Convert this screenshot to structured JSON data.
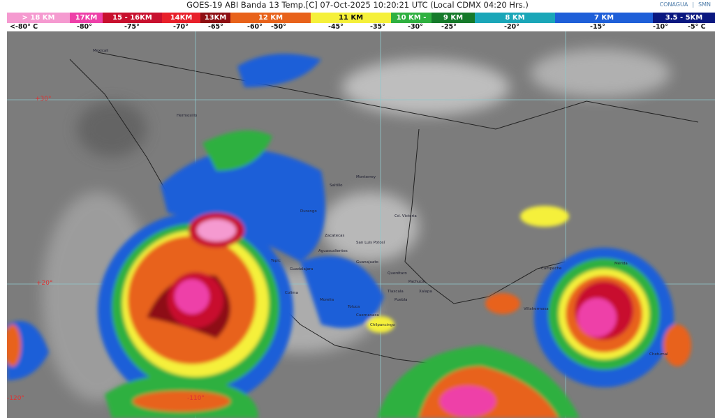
{
  "header": {
    "title": "GOES-19 ABI Banda 13 Temp.[C] 07-Oct-2025 10:20:21 UTC (Local CDMX  04:20 Hrs.)",
    "logos": [
      "CONAGUA",
      "SMN"
    ]
  },
  "legend": [
    {
      "label": "> 18 KM",
      "color": "#f59ad0"
    },
    {
      "label": "17KM",
      "color": "#ee3fa8"
    },
    {
      "label": "15 - 16KM",
      "color": "#c8102e"
    },
    {
      "label": "14KM",
      "color": "#e8202a"
    },
    {
      "label": "13KM",
      "color": "#8e0e12"
    },
    {
      "label": "12 KM",
      "color": "#e8621a"
    },
    {
      "label": "11 KM",
      "color": "#f5f03a"
    },
    {
      "label": "10 KM -",
      "color": "#2fb040"
    },
    {
      "label": "9 KM",
      "color": "#157a2a"
    },
    {
      "label": "8 KM",
      "color": "#1aa6b8"
    },
    {
      "label": "7 KM",
      "color": "#1e5fd8"
    },
    {
      "label": "3.5 - 5KM",
      "color": "#0a1880"
    }
  ],
  "temps": [
    "<-80° C",
    "-80°",
    "-75°",
    "-70°",
    "-65°",
    "-60°",
    "-50°",
    "-45°",
    "-35°",
    "-30°",
    "-25°",
    "-20°",
    "-15°",
    "-10°",
    "-5°  C"
  ],
  "map": {
    "latitudes": [
      "+30°",
      "+20°"
    ],
    "longitudes": [
      "-120°",
      "-110°"
    ],
    "cities": [
      "Mexicali",
      "Hermosillo",
      "Monterrey",
      "Saltillo",
      "Durango",
      "Cd. Victoria",
      "Zacatecas",
      "San Luis Potosí",
      "Aguascalientes",
      "Tepic",
      "Guadalajara",
      "Guanajuato",
      "Querétaro",
      "Pachuca",
      "Colima",
      "Morelia",
      "Toluca",
      "Tlaxcala",
      "Puebla",
      "Cuernavaca",
      "Xalapa",
      "Chilpancingo",
      "Campeche",
      "Villahermosa",
      "Mérida",
      "Chetumal"
    ]
  }
}
